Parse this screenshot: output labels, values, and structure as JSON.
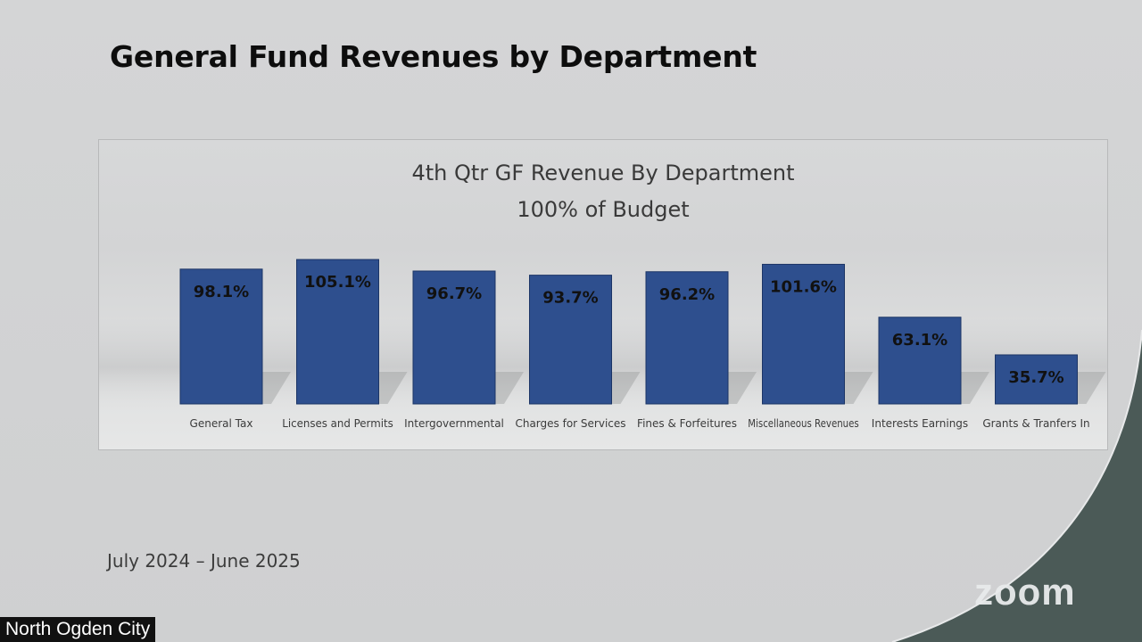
{
  "slide": {
    "title": "General Fund Revenues by Department",
    "period": "July 2024 – June 2025"
  },
  "overlay": {
    "participant_name": "North Ogden City",
    "brand_text": "zoom"
  },
  "colors": {
    "bar_fill": "#2e4f8e",
    "bar_edge": "#1c3566",
    "swoosh": "#4b5a57",
    "background": "#cfd0d1"
  },
  "chart_data": {
    "type": "bar",
    "title": "4th Qtr GF Revenue By Department",
    "subtitle": "100% of Budget",
    "categories": [
      "General Tax",
      "Licenses and Permits",
      "Intergovernmental",
      "Charges for Services",
      "Fines & Forfeitures",
      "Miscellaneous Revenues",
      "Interests Earnings",
      "Grants & Tranfers In"
    ],
    "values": [
      98.1,
      105.1,
      96.7,
      93.7,
      96.2,
      101.6,
      63.1,
      35.7
    ],
    "data_labels": [
      "98.1%",
      "105.1%",
      "96.7%",
      "93.7%",
      "96.2%",
      "101.6%",
      "63.1%",
      "35.7%"
    ],
    "value_unit": "%",
    "ylim": [
      0,
      110
    ],
    "grid": false,
    "legend": "none"
  }
}
